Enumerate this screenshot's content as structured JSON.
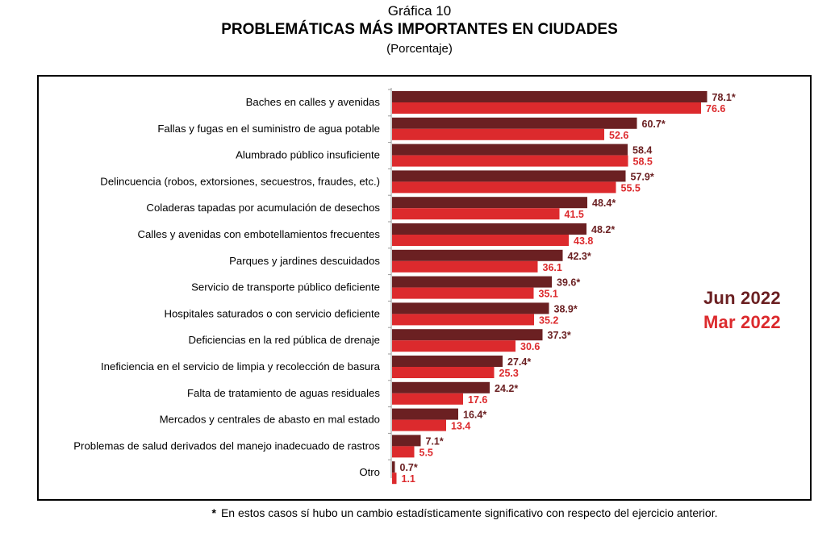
{
  "header": {
    "number": "Gráfica 10",
    "title": "PROBLEMÁTICAS MÁS IMPORTANTES EN CIUDADES",
    "subtitle": "(Porcentaje)"
  },
  "footnote": {
    "symbol": "*",
    "text": "En estos casos sí hubo un cambio estadísticamente significativo con respecto del ejercicio anterior."
  },
  "colors": {
    "jun_2022": "#6b2022",
    "mar_2022": "#dc2a2d"
  },
  "chart_data": {
    "type": "bar",
    "orientation": "horizontal",
    "title": "PROBLEMÁTICAS MÁS IMPORTANTES EN CIUDADES",
    "subtitle": "(Porcentaje)",
    "xlim": [
      0,
      100
    ],
    "grid": false,
    "legend_position": "right",
    "categories": [
      "Baches en calles y avenidas",
      "Fallas y fugas en el suministro de agua potable",
      "Alumbrado público insuficiente",
      "Delincuencia (robos, extorsiones, secuestros, fraudes, etc.)",
      "Coladeras tapadas por acumulación de desechos",
      "Calles y avenidas con embotellamientos frecuentes",
      "Parques y jardines descuidados",
      "Servicio de transporte público deficiente",
      "Hospitales saturados o con servicio deficiente",
      "Deficiencias en la red pública de drenaje",
      "Ineficiencia en el servicio de limpia y recolección de basura",
      "Falta de tratamiento de aguas residuales",
      "Mercados y centrales de abasto en mal estado",
      "Problemas de salud derivados del manejo inadecuado de rastros",
      "Otro"
    ],
    "series": [
      {
        "name": "Jun 2022",
        "color": "#6b2022",
        "values": [
          78.1,
          60.7,
          58.4,
          57.9,
          48.4,
          48.2,
          42.3,
          39.6,
          38.9,
          37.3,
          27.4,
          24.2,
          16.4,
          7.1,
          0.7
        ],
        "labels": [
          "78.1*",
          "60.7*",
          "58.4",
          "57.9*",
          "48.4*",
          "48.2*",
          "42.3*",
          "39.6*",
          "38.9*",
          "37.3*",
          "27.4*",
          "24.2*",
          "16.4*",
          "7.1*",
          "0.7*"
        ]
      },
      {
        "name": "Mar 2022",
        "color": "#dc2a2d",
        "values": [
          76.6,
          52.6,
          58.5,
          55.5,
          41.5,
          43.8,
          36.1,
          35.1,
          35.2,
          30.6,
          25.3,
          17.6,
          13.4,
          5.5,
          1.1
        ],
        "labels": [
          "76.6",
          "52.6",
          "58.5",
          "55.5",
          "41.5",
          "43.8",
          "36.1",
          "35.1",
          "35.2",
          "30.6",
          "25.3",
          "17.6",
          "13.4",
          "5.5",
          "1.1"
        ]
      }
    ]
  }
}
